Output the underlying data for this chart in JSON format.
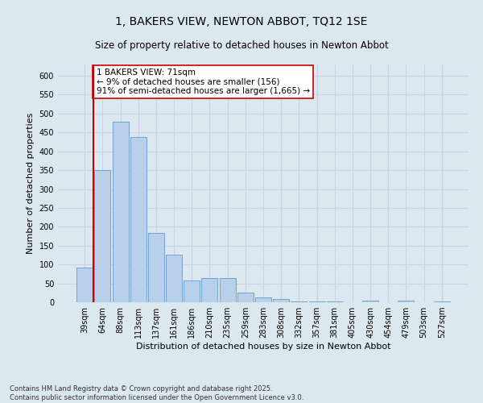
{
  "title": "1, BAKERS VIEW, NEWTON ABBOT, TQ12 1SE",
  "subtitle": "Size of property relative to detached houses in Newton Abbot",
  "xlabel": "Distribution of detached houses by size in Newton Abbot",
  "ylabel": "Number of detached properties",
  "categories": [
    "39sqm",
    "64sqm",
    "88sqm",
    "113sqm",
    "137sqm",
    "161sqm",
    "186sqm",
    "210sqm",
    "235sqm",
    "259sqm",
    "283sqm",
    "308sqm",
    "332sqm",
    "357sqm",
    "381sqm",
    "405sqm",
    "430sqm",
    "454sqm",
    "479sqm",
    "503sqm",
    "527sqm"
  ],
  "values": [
    92,
    350,
    478,
    437,
    183,
    125,
    57,
    65,
    65,
    25,
    12,
    8,
    2,
    2,
    2,
    0,
    5,
    0,
    5,
    0,
    3
  ],
  "bar_color": "#b8d0ea",
  "bar_edge_color": "#6699cc",
  "grid_color": "#c8d4e4",
  "background_color": "#dce8f0",
  "vline_x": 0.5,
  "vline_color": "#cc0000",
  "annotation_text": "1 BAKERS VIEW: 71sqm\n← 9% of detached houses are smaller (156)\n91% of semi-detached houses are larger (1,665) →",
  "annotation_box_color": "#ffffff",
  "annotation_box_edge": "#cc0000",
  "footer": "Contains HM Land Registry data © Crown copyright and database right 2025.\nContains public sector information licensed under the Open Government Licence v3.0.",
  "ylim": [
    0,
    630
  ],
  "yticks": [
    0,
    50,
    100,
    150,
    200,
    250,
    300,
    350,
    400,
    450,
    500,
    550,
    600
  ],
  "title_fontsize": 10,
  "subtitle_fontsize": 8.5,
  "axis_label_fontsize": 8,
  "tick_fontsize": 7,
  "annot_fontsize": 7.5,
  "footer_fontsize": 6
}
